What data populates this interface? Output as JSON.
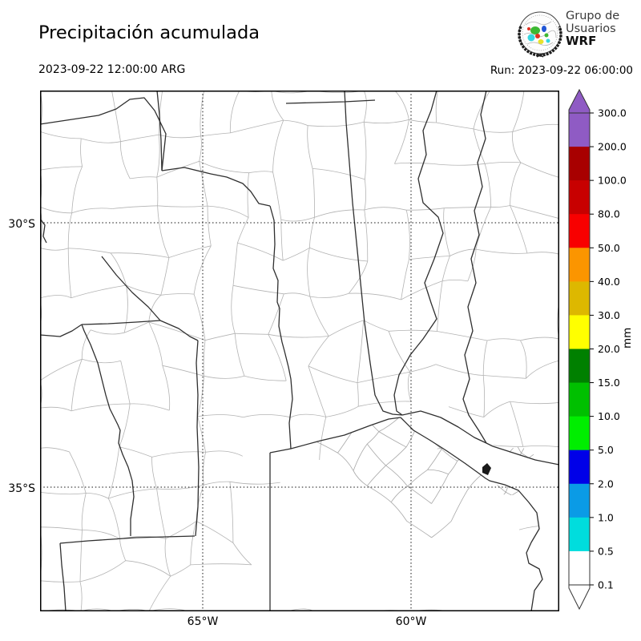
{
  "header": {
    "title": "Precipitación acumulada",
    "valid_time": "2023-09-22 12:00:00 ARG",
    "run_label": "Run: 2023-09-22 06:00:00",
    "logo": {
      "line1": "Grupo de",
      "line2": "Usuarios",
      "line3": "WRF"
    }
  },
  "map": {
    "lat_ticks": [
      "30°S",
      "35°S"
    ],
    "lon_ticks": [
      "65°W",
      "60°W"
    ]
  },
  "colorbar": {
    "unit": "mm",
    "tick_labels": [
      "300.0",
      "200.0",
      "100.0",
      "80.0",
      "50.0",
      "40.0",
      "30.0",
      "20.0",
      "15.0",
      "10.0",
      "5.0",
      "2.0",
      "1.0",
      "0.5",
      "0.1"
    ],
    "segment_colors_top_to_bottom": [
      "#8F5BC4",
      "#A80000",
      "#C80000",
      "#F80000",
      "#FB9500",
      "#DDB800",
      "#FFFF00",
      "#008000",
      "#00C000",
      "#00EE00",
      "#0000E8",
      "#0A9BE6",
      "#00DDDD",
      "#FFFFFF"
    ],
    "extend_above_color": "#8F5BC4",
    "extend_below_color": "#FFFFFF",
    "outline_color": "#333333"
  }
}
